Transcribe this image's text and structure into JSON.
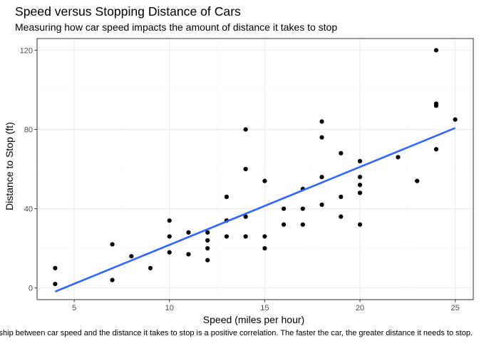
{
  "chart_data": {
    "type": "scatter",
    "title": "Speed versus Stopping Distance of Cars",
    "subtitle": "Measuring how car speed impacts the amount of distance it takes to stop",
    "caption": "The relationship between car speed and the distance it takes to stop is a positive correlation. The faster the car, the greater distance it needs to stop.",
    "xlabel": "Speed (miles per hour)",
    "ylabel": "Distance to Stop (ft)",
    "xlim": [
      3.05,
      25.95
    ],
    "ylim": [
      -5.9,
      125.9
    ],
    "xticks": [
      5,
      10,
      15,
      20,
      25
    ],
    "yticks": [
      0,
      40,
      80,
      120
    ],
    "grid": true,
    "legend": "none",
    "points": [
      [
        4,
        2
      ],
      [
        4,
        10
      ],
      [
        7,
        4
      ],
      [
        7,
        22
      ],
      [
        8,
        16
      ],
      [
        9,
        10
      ],
      [
        10,
        18
      ],
      [
        10,
        26
      ],
      [
        10,
        34
      ],
      [
        11,
        17
      ],
      [
        11,
        28
      ],
      [
        12,
        14
      ],
      [
        12,
        20
      ],
      [
        12,
        24
      ],
      [
        12,
        28
      ],
      [
        13,
        26
      ],
      [
        13,
        34
      ],
      [
        13,
        34
      ],
      [
        13,
        46
      ],
      [
        14,
        26
      ],
      [
        14,
        36
      ],
      [
        14,
        60
      ],
      [
        14,
        80
      ],
      [
        15,
        20
      ],
      [
        15,
        26
      ],
      [
        15,
        54
      ],
      [
        16,
        32
      ],
      [
        16,
        40
      ],
      [
        17,
        32
      ],
      [
        17,
        40
      ],
      [
        17,
        50
      ],
      [
        18,
        42
      ],
      [
        18,
        56
      ],
      [
        18,
        76
      ],
      [
        18,
        84
      ],
      [
        19,
        36
      ],
      [
        19,
        46
      ],
      [
        19,
        68
      ],
      [
        20,
        32
      ],
      [
        20,
        48
      ],
      [
        20,
        52
      ],
      [
        20,
        56
      ],
      [
        20,
        64
      ],
      [
        22,
        66
      ],
      [
        23,
        54
      ],
      [
        24,
        70
      ],
      [
        24,
        92
      ],
      [
        24,
        93
      ],
      [
        24,
        120
      ],
      [
        25,
        85
      ]
    ],
    "fit_line": {
      "x": [
        4,
        25
      ],
      "y": [
        -1.85,
        80.73
      ]
    },
    "colors": {
      "points": "#000000",
      "fit_line": "#3366ff",
      "grid_major": "#ebebeb",
      "grid_minor": "#f5f5f5",
      "panel_border": "#333333",
      "axis_text": "#4d4d4d"
    }
  }
}
